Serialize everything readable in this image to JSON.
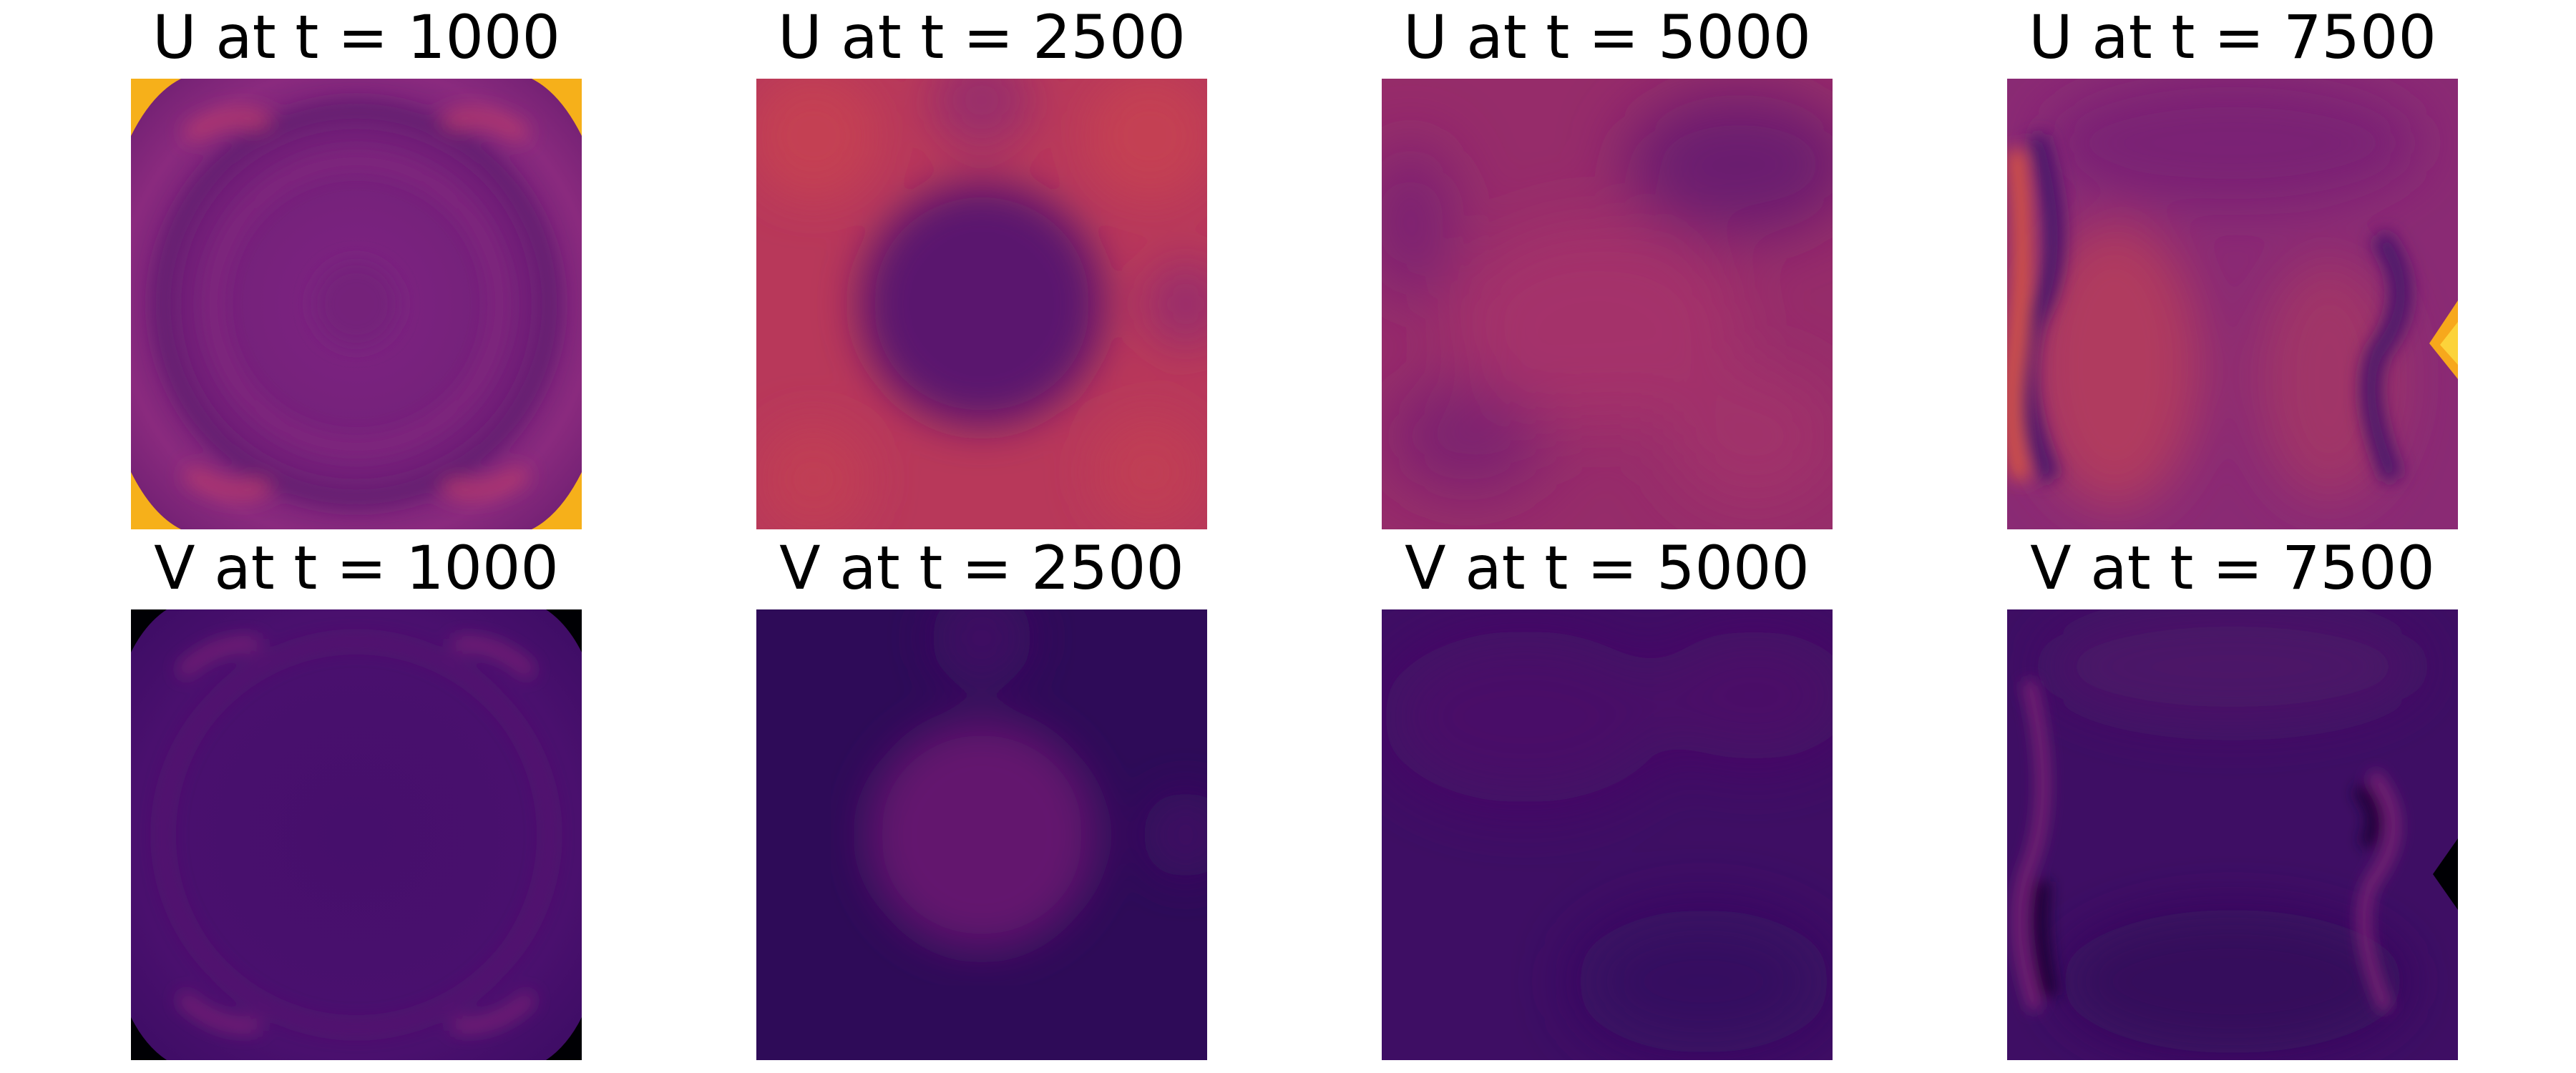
{
  "chart_data": [
    {
      "type": "heatmap",
      "title": "U at t = 1000",
      "field": "U",
      "t": 1000,
      "colormap": "inferno",
      "pattern": "ring-corners",
      "axes": "off"
    },
    {
      "type": "heatmap",
      "title": "U at t = 2500",
      "field": "U",
      "t": 2500,
      "colormap": "inferno",
      "pattern": "center-spot",
      "axes": "off"
    },
    {
      "type": "heatmap",
      "title": "U at t = 5000",
      "field": "U",
      "t": 5000,
      "colormap": "inferno",
      "pattern": "diffuse",
      "axes": "off"
    },
    {
      "type": "heatmap",
      "title": "U at t = 7500",
      "field": "U",
      "t": 7500,
      "colormap": "inferno",
      "pattern": "side-waves",
      "axes": "off"
    },
    {
      "type": "heatmap",
      "title": "V at t = 1000",
      "field": "V",
      "t": 1000,
      "colormap": "inferno",
      "pattern": "ring-corners",
      "axes": "off"
    },
    {
      "type": "heatmap",
      "title": "V at t = 2500",
      "field": "V",
      "t": 2500,
      "colormap": "inferno",
      "pattern": "center-spot",
      "axes": "off"
    },
    {
      "type": "heatmap",
      "title": "V at t = 5000",
      "field": "V",
      "t": 5000,
      "colormap": "inferno",
      "pattern": "diffuse",
      "axes": "off"
    },
    {
      "type": "heatmap",
      "title": "V at t = 7500",
      "field": "V",
      "t": 7500,
      "colormap": "inferno",
      "pattern": "side-waves",
      "axes": "off"
    }
  ]
}
